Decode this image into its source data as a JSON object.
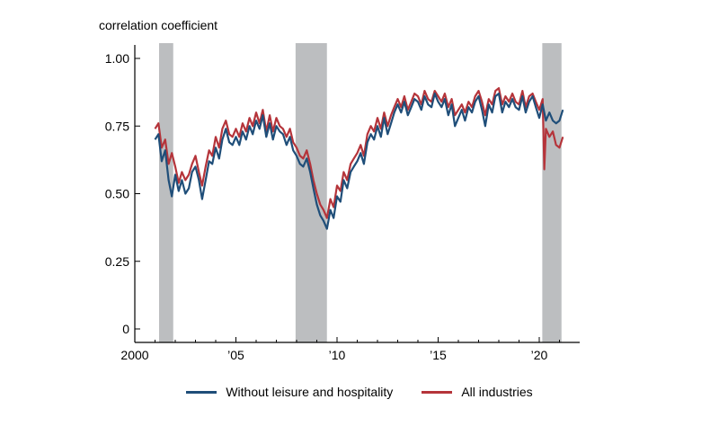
{
  "chart_data": {
    "type": "line",
    "ylabel": "correlation coefficient",
    "ylim": [
      0,
      1.0
    ],
    "xlim": [
      2000,
      2022
    ],
    "y_ticks": [
      {
        "value": 0,
        "label": "0"
      },
      {
        "value": 0.25,
        "label": "0.25"
      },
      {
        "value": 0.5,
        "label": "0.50"
      },
      {
        "value": 0.75,
        "label": "0.75"
      },
      {
        "value": 1.0,
        "label": "1.00"
      }
    ],
    "x_ticks": [
      {
        "value": 2000,
        "label": "2000"
      },
      {
        "value": 2005,
        "label": "’05"
      },
      {
        "value": 2010,
        "label": "’10"
      },
      {
        "value": 2015,
        "label": "’15"
      },
      {
        "value": 2020,
        "label": "’20"
      }
    ],
    "recessions": [
      [
        2001.2,
        2001.9
      ],
      [
        2007.95,
        2009.5
      ],
      [
        2020.15,
        2021.1
      ]
    ],
    "grid": false,
    "legend_position": "bottom",
    "series": [
      {
        "name": "Without leisure and hospitality",
        "color": "#1f4e79",
        "points": [
          [
            2001.0,
            0.7
          ],
          [
            2001.17,
            0.72
          ],
          [
            2001.33,
            0.62
          ],
          [
            2001.5,
            0.66
          ],
          [
            2001.67,
            0.55
          ],
          [
            2001.83,
            0.49
          ],
          [
            2002.0,
            0.57
          ],
          [
            2002.17,
            0.51
          ],
          [
            2002.33,
            0.55
          ],
          [
            2002.5,
            0.5
          ],
          [
            2002.67,
            0.52
          ],
          [
            2002.83,
            0.58
          ],
          [
            2003.0,
            0.6
          ],
          [
            2003.17,
            0.55
          ],
          [
            2003.33,
            0.48
          ],
          [
            2003.5,
            0.55
          ],
          [
            2003.67,
            0.62
          ],
          [
            2003.83,
            0.61
          ],
          [
            2004.0,
            0.67
          ],
          [
            2004.17,
            0.63
          ],
          [
            2004.33,
            0.7
          ],
          [
            2004.5,
            0.74
          ],
          [
            2004.67,
            0.69
          ],
          [
            2004.83,
            0.68
          ],
          [
            2005.0,
            0.71
          ],
          [
            2005.17,
            0.68
          ],
          [
            2005.33,
            0.73
          ],
          [
            2005.5,
            0.7
          ],
          [
            2005.67,
            0.75
          ],
          [
            2005.83,
            0.72
          ],
          [
            2006.0,
            0.77
          ],
          [
            2006.17,
            0.74
          ],
          [
            2006.33,
            0.79
          ],
          [
            2006.5,
            0.71
          ],
          [
            2006.67,
            0.76
          ],
          [
            2006.83,
            0.7
          ],
          [
            2007.0,
            0.75
          ],
          [
            2007.17,
            0.73
          ],
          [
            2007.33,
            0.72
          ],
          [
            2007.5,
            0.68
          ],
          [
            2007.67,
            0.71
          ],
          [
            2007.83,
            0.66
          ],
          [
            2008.0,
            0.64
          ],
          [
            2008.17,
            0.61
          ],
          [
            2008.33,
            0.6
          ],
          [
            2008.5,
            0.63
          ],
          [
            2008.67,
            0.58
          ],
          [
            2008.83,
            0.52
          ],
          [
            2009.0,
            0.46
          ],
          [
            2009.17,
            0.42
          ],
          [
            2009.33,
            0.4
          ],
          [
            2009.5,
            0.37
          ],
          [
            2009.67,
            0.44
          ],
          [
            2009.83,
            0.41
          ],
          [
            2010.0,
            0.49
          ],
          [
            2010.17,
            0.47
          ],
          [
            2010.33,
            0.55
          ],
          [
            2010.5,
            0.52
          ],
          [
            2010.67,
            0.58
          ],
          [
            2010.83,
            0.6
          ],
          [
            2011.0,
            0.62
          ],
          [
            2011.17,
            0.65
          ],
          [
            2011.33,
            0.61
          ],
          [
            2011.5,
            0.69
          ],
          [
            2011.67,
            0.72
          ],
          [
            2011.83,
            0.7
          ],
          [
            2012.0,
            0.75
          ],
          [
            2012.17,
            0.71
          ],
          [
            2012.33,
            0.78
          ],
          [
            2012.5,
            0.72
          ],
          [
            2012.67,
            0.76
          ],
          [
            2012.83,
            0.8
          ],
          [
            2013.0,
            0.83
          ],
          [
            2013.17,
            0.8
          ],
          [
            2013.33,
            0.84
          ],
          [
            2013.5,
            0.79
          ],
          [
            2013.67,
            0.82
          ],
          [
            2013.83,
            0.85
          ],
          [
            2014.0,
            0.84
          ],
          [
            2014.17,
            0.81
          ],
          [
            2014.33,
            0.86
          ],
          [
            2014.5,
            0.83
          ],
          [
            2014.67,
            0.82
          ],
          [
            2014.83,
            0.87
          ],
          [
            2015.0,
            0.84
          ],
          [
            2015.17,
            0.82
          ],
          [
            2015.33,
            0.85
          ],
          [
            2015.5,
            0.79
          ],
          [
            2015.67,
            0.83
          ],
          [
            2015.83,
            0.75
          ],
          [
            2016.0,
            0.78
          ],
          [
            2016.17,
            0.81
          ],
          [
            2016.33,
            0.77
          ],
          [
            2016.5,
            0.82
          ],
          [
            2016.67,
            0.8
          ],
          [
            2016.83,
            0.84
          ],
          [
            2017.0,
            0.86
          ],
          [
            2017.17,
            0.81
          ],
          [
            2017.33,
            0.75
          ],
          [
            2017.5,
            0.83
          ],
          [
            2017.67,
            0.8
          ],
          [
            2017.83,
            0.86
          ],
          [
            2018.0,
            0.87
          ],
          [
            2018.17,
            0.8
          ],
          [
            2018.33,
            0.84
          ],
          [
            2018.5,
            0.82
          ],
          [
            2018.67,
            0.85
          ],
          [
            2018.83,
            0.82
          ],
          [
            2019.0,
            0.81
          ],
          [
            2019.17,
            0.86
          ],
          [
            2019.33,
            0.8
          ],
          [
            2019.5,
            0.84
          ],
          [
            2019.67,
            0.86
          ],
          [
            2019.83,
            0.82
          ],
          [
            2020.0,
            0.78
          ],
          [
            2020.17,
            0.83
          ],
          [
            2020.33,
            0.77
          ],
          [
            2020.5,
            0.8
          ],
          [
            2020.67,
            0.77
          ],
          [
            2020.83,
            0.76
          ],
          [
            2021.0,
            0.77
          ],
          [
            2021.17,
            0.81
          ]
        ]
      },
      {
        "name": "All industries",
        "color": "#b5343a",
        "points": [
          [
            2001.0,
            0.74
          ],
          [
            2001.17,
            0.76
          ],
          [
            2001.33,
            0.67
          ],
          [
            2001.5,
            0.7
          ],
          [
            2001.67,
            0.61
          ],
          [
            2001.83,
            0.65
          ],
          [
            2002.0,
            0.6
          ],
          [
            2002.17,
            0.54
          ],
          [
            2002.33,
            0.58
          ],
          [
            2002.5,
            0.55
          ],
          [
            2002.67,
            0.57
          ],
          [
            2002.83,
            0.61
          ],
          [
            2003.0,
            0.64
          ],
          [
            2003.17,
            0.58
          ],
          [
            2003.33,
            0.53
          ],
          [
            2003.5,
            0.6
          ],
          [
            2003.67,
            0.66
          ],
          [
            2003.83,
            0.64
          ],
          [
            2004.0,
            0.71
          ],
          [
            2004.17,
            0.67
          ],
          [
            2004.33,
            0.74
          ],
          [
            2004.5,
            0.77
          ],
          [
            2004.67,
            0.72
          ],
          [
            2004.83,
            0.71
          ],
          [
            2005.0,
            0.74
          ],
          [
            2005.17,
            0.71
          ],
          [
            2005.33,
            0.76
          ],
          [
            2005.5,
            0.73
          ],
          [
            2005.67,
            0.78
          ],
          [
            2005.83,
            0.75
          ],
          [
            2006.0,
            0.8
          ],
          [
            2006.17,
            0.76
          ],
          [
            2006.33,
            0.81
          ],
          [
            2006.5,
            0.73
          ],
          [
            2006.67,
            0.79
          ],
          [
            2006.83,
            0.73
          ],
          [
            2007.0,
            0.78
          ],
          [
            2007.17,
            0.75
          ],
          [
            2007.33,
            0.74
          ],
          [
            2007.5,
            0.71
          ],
          [
            2007.67,
            0.74
          ],
          [
            2007.83,
            0.69
          ],
          [
            2008.0,
            0.67
          ],
          [
            2008.17,
            0.64
          ],
          [
            2008.33,
            0.63
          ],
          [
            2008.5,
            0.66
          ],
          [
            2008.67,
            0.61
          ],
          [
            2008.83,
            0.55
          ],
          [
            2009.0,
            0.5
          ],
          [
            2009.17,
            0.46
          ],
          [
            2009.33,
            0.44
          ],
          [
            2009.5,
            0.41
          ],
          [
            2009.67,
            0.48
          ],
          [
            2009.83,
            0.45
          ],
          [
            2010.0,
            0.53
          ],
          [
            2010.17,
            0.51
          ],
          [
            2010.33,
            0.58
          ],
          [
            2010.5,
            0.55
          ],
          [
            2010.67,
            0.61
          ],
          [
            2010.83,
            0.63
          ],
          [
            2011.0,
            0.65
          ],
          [
            2011.17,
            0.68
          ],
          [
            2011.33,
            0.64
          ],
          [
            2011.5,
            0.72
          ],
          [
            2011.67,
            0.75
          ],
          [
            2011.83,
            0.73
          ],
          [
            2012.0,
            0.78
          ],
          [
            2012.17,
            0.74
          ],
          [
            2012.33,
            0.8
          ],
          [
            2012.5,
            0.75
          ],
          [
            2012.67,
            0.79
          ],
          [
            2012.83,
            0.82
          ],
          [
            2013.0,
            0.85
          ],
          [
            2013.17,
            0.82
          ],
          [
            2013.33,
            0.86
          ],
          [
            2013.5,
            0.81
          ],
          [
            2013.67,
            0.84
          ],
          [
            2013.83,
            0.87
          ],
          [
            2014.0,
            0.86
          ],
          [
            2014.17,
            0.83
          ],
          [
            2014.33,
            0.88
          ],
          [
            2014.5,
            0.85
          ],
          [
            2014.67,
            0.84
          ],
          [
            2014.83,
            0.88
          ],
          [
            2015.0,
            0.86
          ],
          [
            2015.17,
            0.84
          ],
          [
            2015.33,
            0.87
          ],
          [
            2015.5,
            0.82
          ],
          [
            2015.67,
            0.85
          ],
          [
            2015.83,
            0.79
          ],
          [
            2016.0,
            0.81
          ],
          [
            2016.17,
            0.83
          ],
          [
            2016.33,
            0.8
          ],
          [
            2016.5,
            0.84
          ],
          [
            2016.67,
            0.82
          ],
          [
            2016.83,
            0.86
          ],
          [
            2017.0,
            0.88
          ],
          [
            2017.17,
            0.84
          ],
          [
            2017.33,
            0.79
          ],
          [
            2017.5,
            0.85
          ],
          [
            2017.67,
            0.83
          ],
          [
            2017.83,
            0.88
          ],
          [
            2018.0,
            0.89
          ],
          [
            2018.17,
            0.83
          ],
          [
            2018.33,
            0.86
          ],
          [
            2018.5,
            0.84
          ],
          [
            2018.67,
            0.87
          ],
          [
            2018.83,
            0.84
          ],
          [
            2019.0,
            0.83
          ],
          [
            2019.17,
            0.88
          ],
          [
            2019.33,
            0.82
          ],
          [
            2019.5,
            0.86
          ],
          [
            2019.67,
            0.87
          ],
          [
            2019.83,
            0.84
          ],
          [
            2020.0,
            0.81
          ],
          [
            2020.17,
            0.85
          ],
          [
            2020.25,
            0.59
          ],
          [
            2020.33,
            0.74
          ],
          [
            2020.5,
            0.71
          ],
          [
            2020.67,
            0.73
          ],
          [
            2020.83,
            0.68
          ],
          [
            2021.0,
            0.67
          ],
          [
            2021.17,
            0.71
          ]
        ]
      }
    ]
  }
}
